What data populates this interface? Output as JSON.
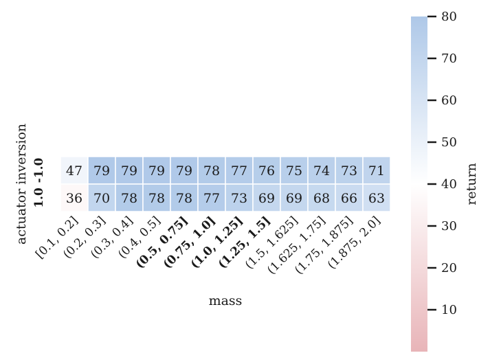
{
  "chart_data": {
    "type": "heatmap",
    "title": "",
    "xlabel": "mass",
    "ylabel": "actuator inversion",
    "x_categories": [
      "[0.1, 0.2]",
      "(0.2, 0.3]",
      "(0.3, 0.4]",
      "(0.4, 0.5]",
      "(0.5, 0.75]",
      "(0.75, 1.0]",
      "(1.0, 1.25]",
      "(1.25, 1.5]",
      "(1.5, 1.625]",
      "(1.625, 1.75]",
      "(1.75, 1.875]",
      "(1.875, 2.0]"
    ],
    "x_bold": [
      false,
      false,
      false,
      false,
      true,
      true,
      true,
      true,
      false,
      false,
      false,
      false
    ],
    "y_categories": [
      "-1.0",
      "1.0"
    ],
    "y_bold": [
      true,
      true
    ],
    "values": [
      [
        47,
        79,
        79,
        79,
        79,
        78,
        77,
        76,
        75,
        74,
        73,
        71
      ],
      [
        36,
        70,
        78,
        78,
        78,
        77,
        73,
        69,
        69,
        68,
        66,
        63
      ]
    ],
    "colorbar": {
      "label": "return",
      "vmin": 0,
      "vmax": 80,
      "center": 40,
      "ticks": [
        10,
        20,
        30,
        40,
        50,
        60,
        70,
        80
      ],
      "colors": {
        "low": "#e8b4b8",
        "mid": "#ffffff",
        "high": "#aec8e8"
      }
    }
  }
}
